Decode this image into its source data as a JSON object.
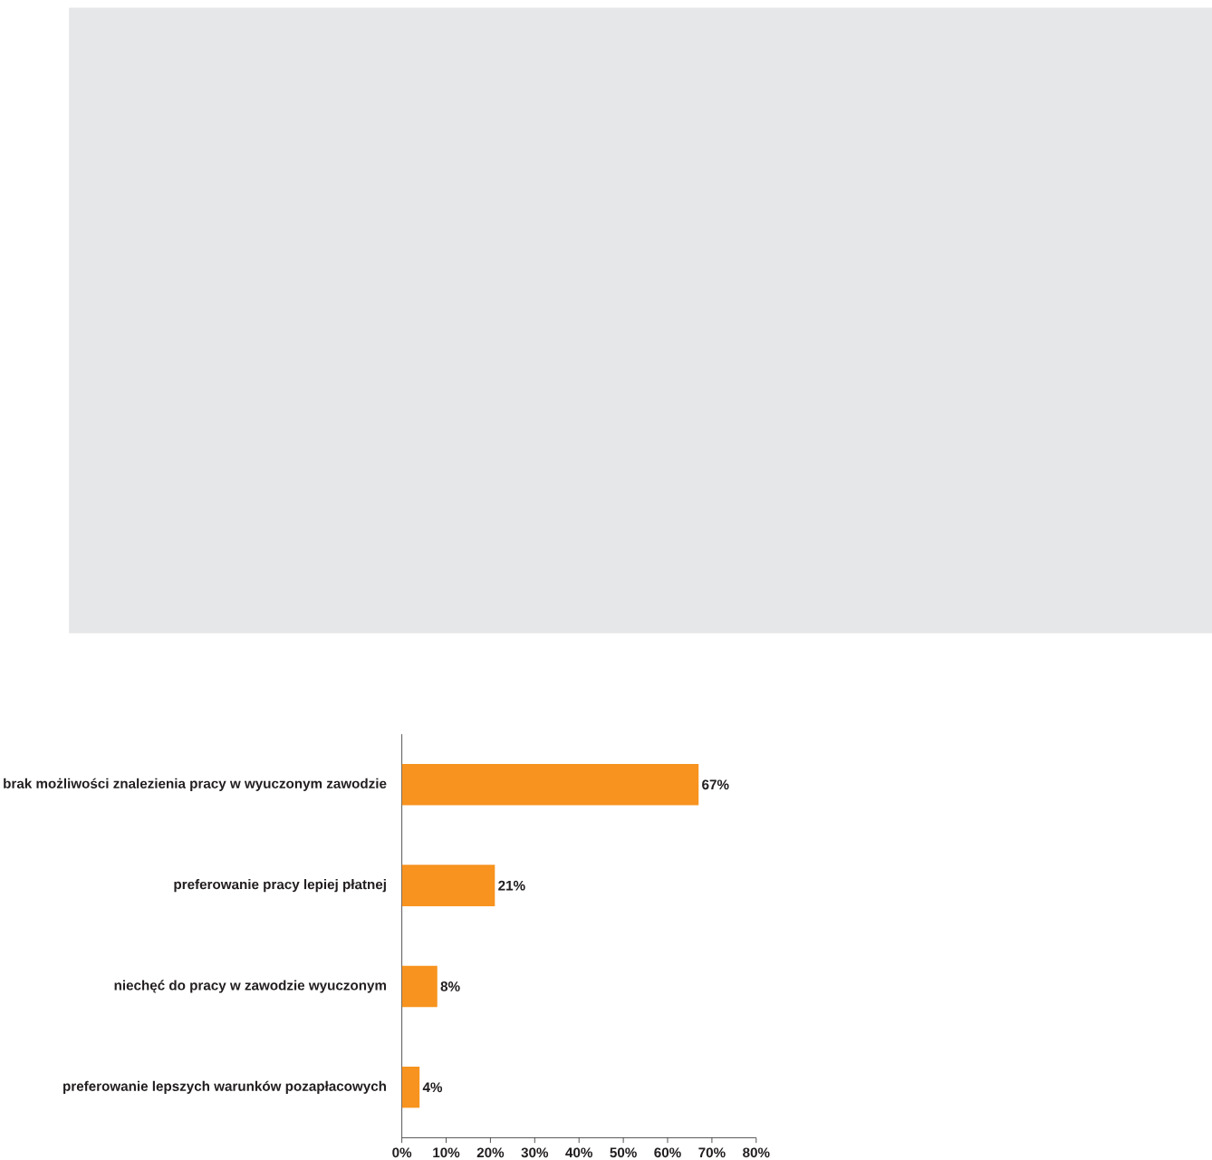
{
  "chart_data": {
    "type": "bar",
    "orientation": "horizontal",
    "categories": [
      "brak możliwości znalezienia pracy w wyuczonym zawodzie",
      "preferowanie pracy lepiej płatnej",
      "niechęć do pracy w zawodzie wyuczonym",
      "preferowanie lepszych warunków pozapłacowych"
    ],
    "values": [
      67,
      21,
      8,
      4
    ],
    "value_labels": [
      "67%",
      "21%",
      "8%",
      "4%"
    ],
    "color": "#f7931e",
    "xlim": [
      0,
      80
    ],
    "xticks": [
      {
        "value": 0,
        "label": "0%"
      },
      {
        "value": 10,
        "label": "10%"
      },
      {
        "value": 20,
        "label": "20%"
      },
      {
        "value": 30,
        "label": "30%"
      },
      {
        "value": 40,
        "label": "40%"
      },
      {
        "value": 50,
        "label": "50%"
      },
      {
        "value": 60,
        "label": "60%"
      },
      {
        "value": 70,
        "label": "70%"
      },
      {
        "value": 80,
        "label": "80%"
      }
    ]
  }
}
